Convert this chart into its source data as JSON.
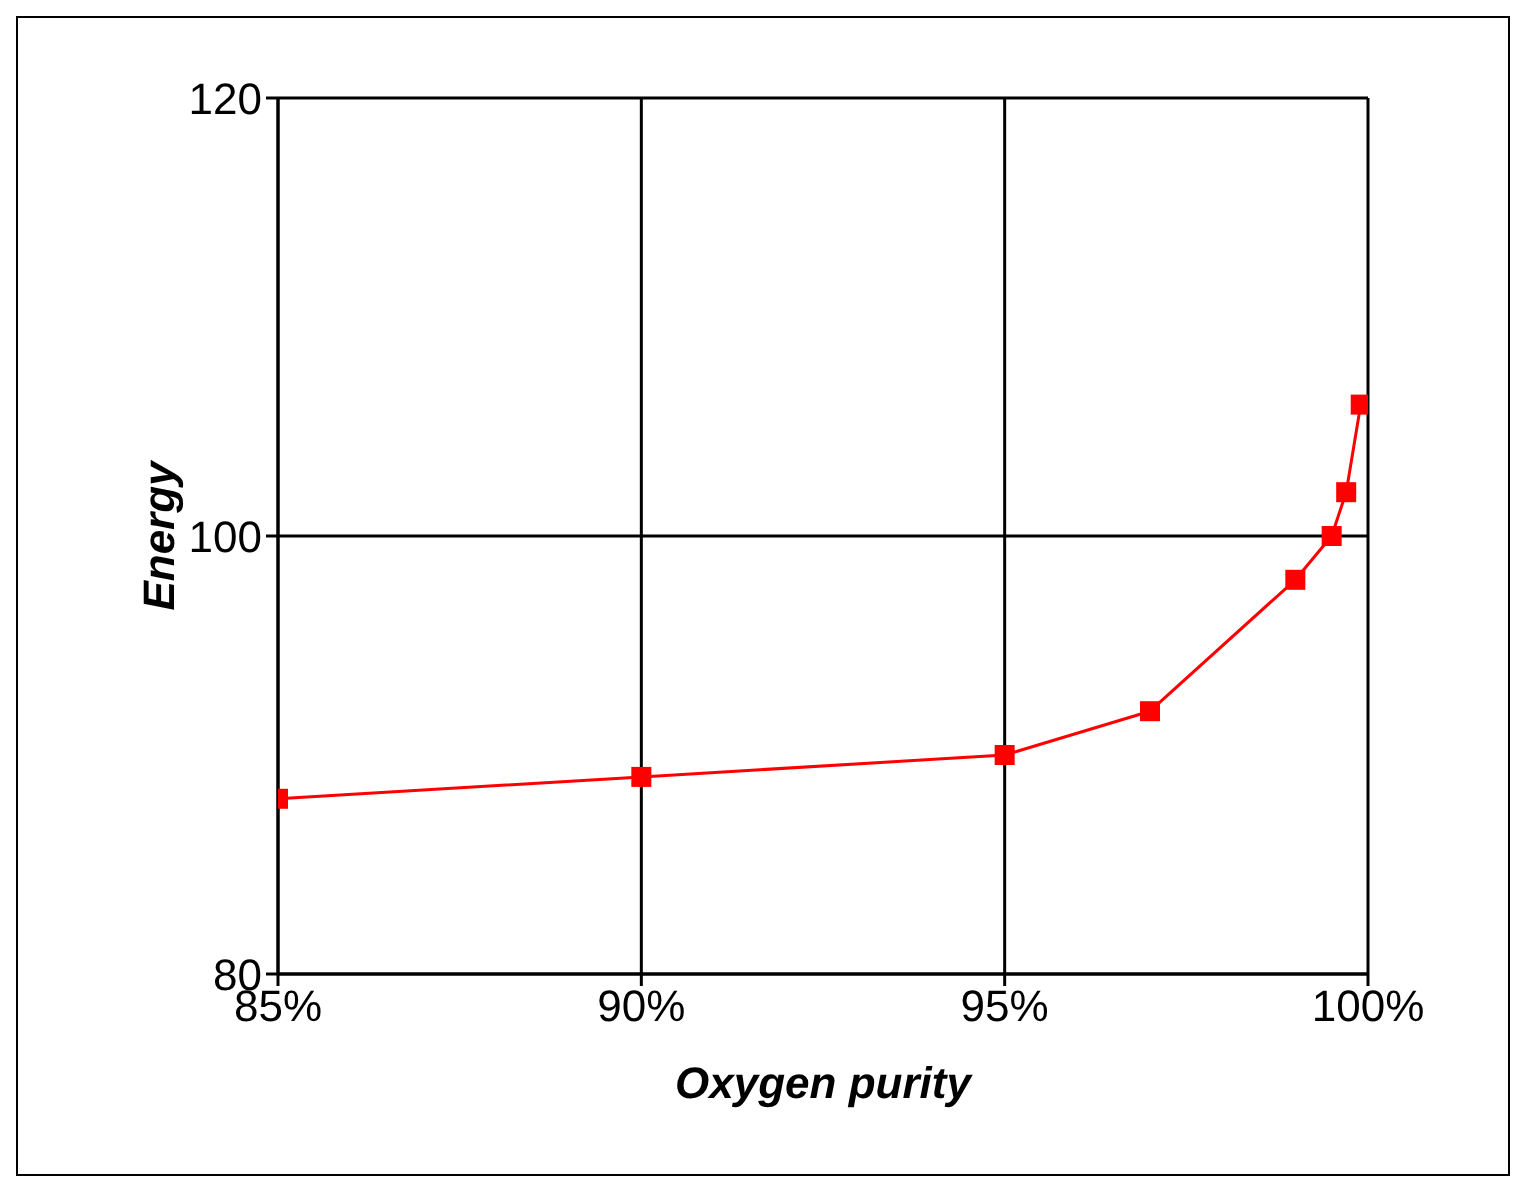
{
  "chart_data": {
    "type": "line",
    "xlabel": "Oxygen purity",
    "ylabel": "Energy",
    "x": [
      85,
      90,
      95,
      97,
      99,
      99.5,
      99.7,
      99.9
    ],
    "series": [
      {
        "color": "#ff0000",
        "values": [
          88,
          89,
          90,
          92,
          98,
          100,
          102,
          106
        ]
      }
    ],
    "xlim": [
      85,
      100
    ],
    "xticks": [
      {
        "value": 85,
        "label": "85%"
      },
      {
        "value": 90,
        "label": "90%"
      },
      {
        "value": 95,
        "label": "95%"
      },
      {
        "value": 100,
        "label": "100%"
      }
    ],
    "ylim": [
      80,
      120
    ],
    "yticks": [
      80,
      100,
      120
    ],
    "grid": true,
    "legend": false,
    "marker": "square",
    "line_style": "solid"
  }
}
